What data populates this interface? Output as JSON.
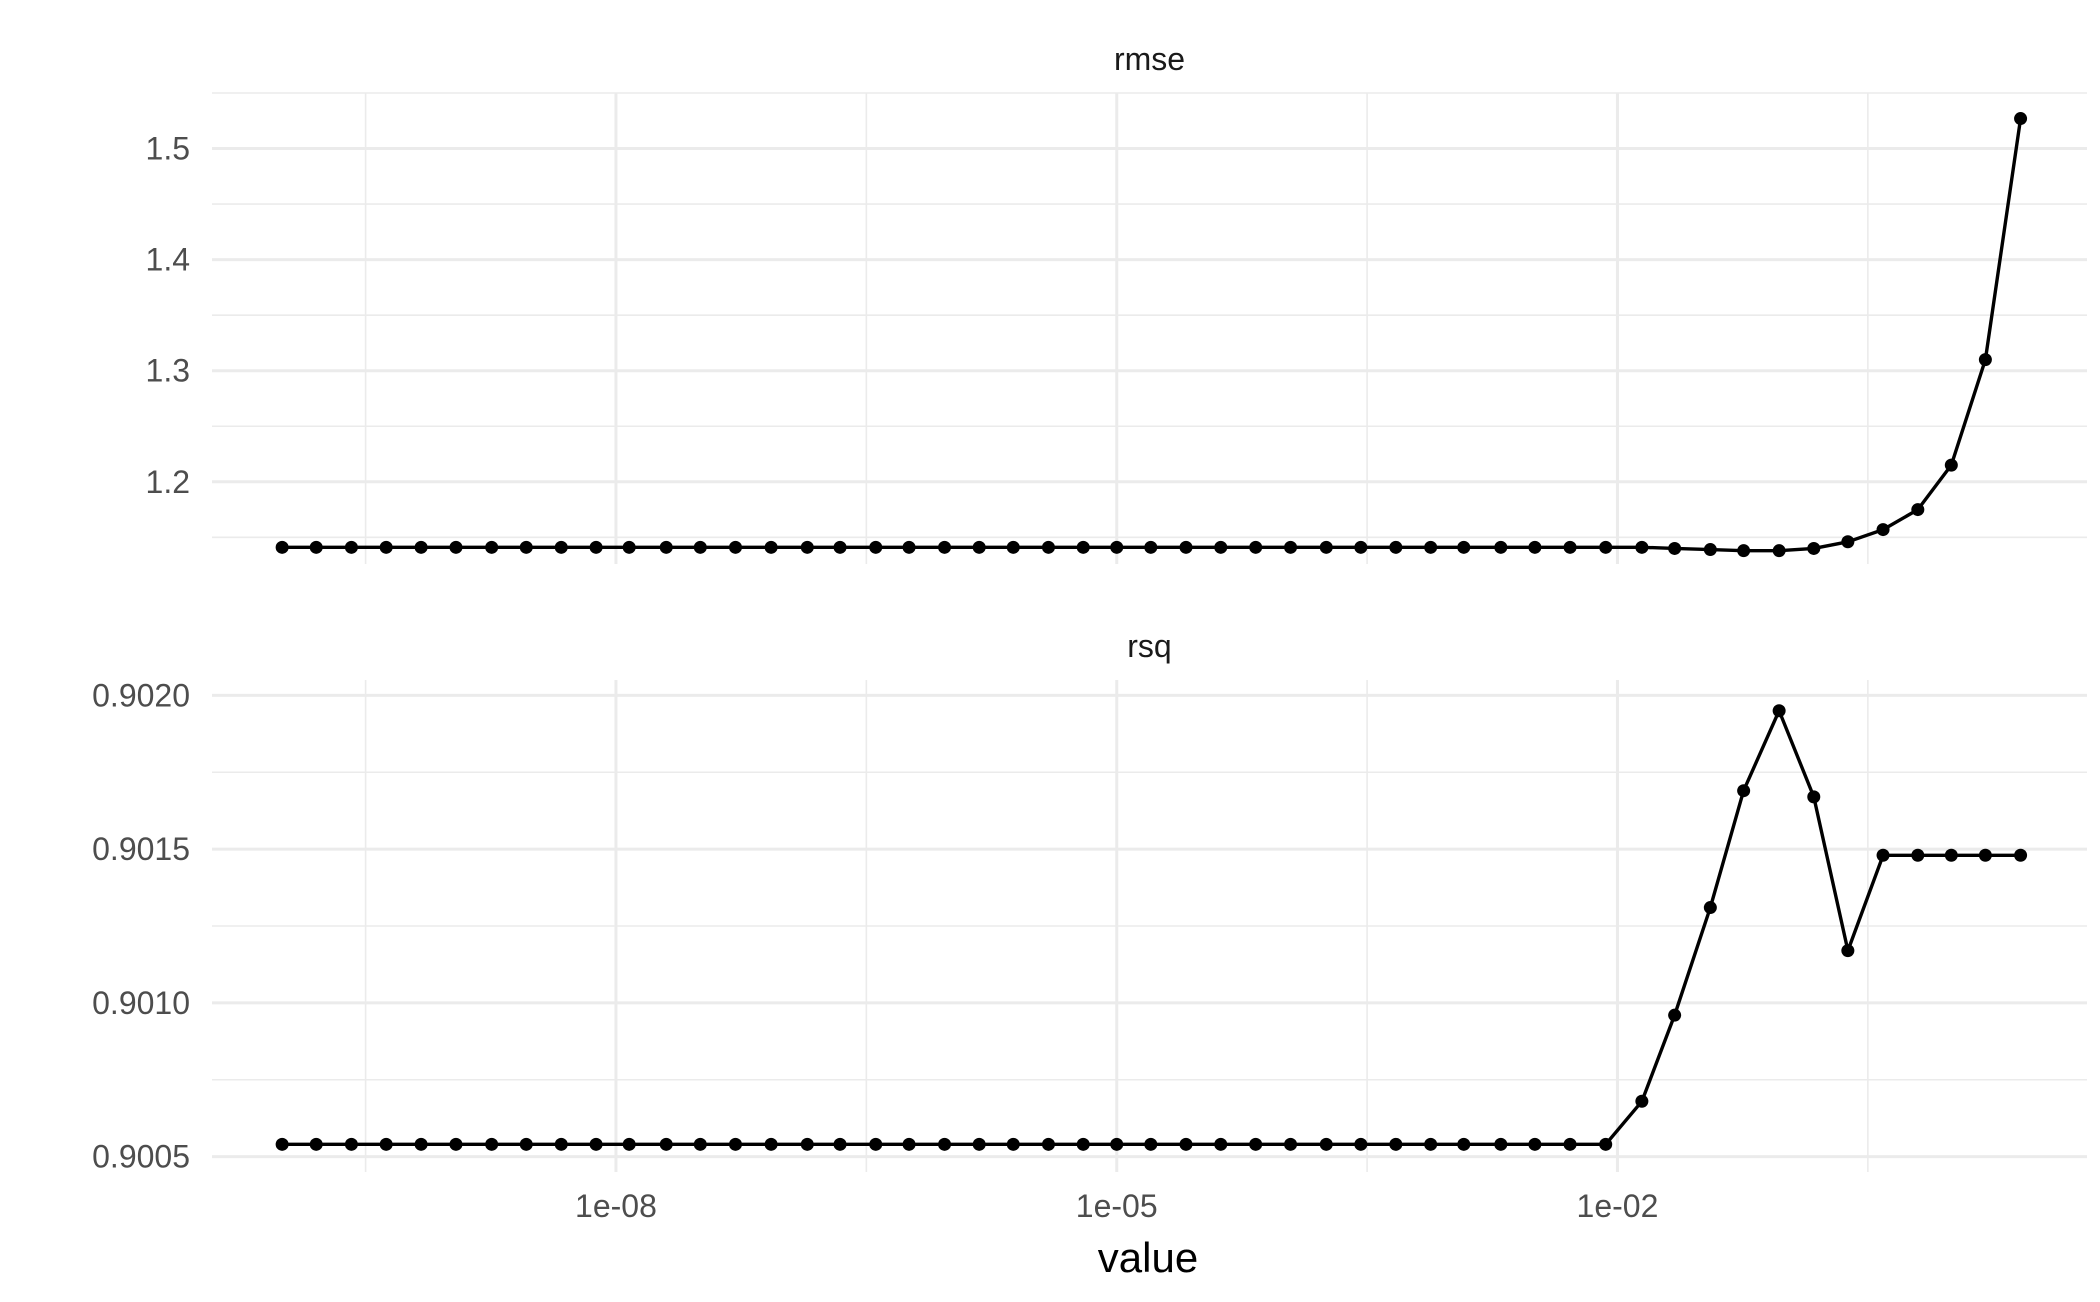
{
  "chart_data": {
    "type": "line",
    "x_scale": "log10",
    "xlabel": "value",
    "x_ticks": [
      1e-08,
      1e-05,
      0.01
    ],
    "x_tick_labels": [
      "1e-08",
      "1e-05",
      "1e-02"
    ],
    "xlim": [
      3.8e-11,
      6.5
    ],
    "x": [
      1e-10,
      1.6e-10,
      2.6e-10,
      4.2e-10,
      6.8e-10,
      1.1e-09,
      1.8e-09,
      2.9e-09,
      4.7e-09,
      7.6e-09,
      1.2e-08,
      2e-08,
      3.2e-08,
      5.2e-08,
      8.5e-08,
      1.4e-07,
      2.2e-07,
      3.6e-07,
      5.7e-07,
      9.3e-07,
      1.5e-06,
      2.4e-06,
      3.9e-06,
      6.3e-06,
      1e-05,
      1.6e-05,
      2.6e-05,
      4.2e-05,
      6.8e-05,
      0.00011,
      0.00018,
      0.00029,
      0.00047,
      0.00076,
      0.0012,
      0.002,
      0.0032,
      0.0052,
      0.0085,
      0.014,
      0.022,
      0.036,
      0.057,
      0.093,
      0.15,
      0.24,
      0.39,
      0.63,
      1.0,
      1.6,
      2.6
    ],
    "panels": [
      {
        "title": "rmse",
        "ylim": [
          1.126,
          1.55
        ],
        "y_ticks": [
          1.2,
          1.3,
          1.4,
          1.5
        ],
        "y_tick_labels": [
          "1.2",
          "1.3",
          "1.4",
          "1.5"
        ],
        "series": [
          {
            "values": [
              1.141,
              1.141,
              1.141,
              1.141,
              1.141,
              1.141,
              1.141,
              1.141,
              1.141,
              1.141,
              1.141,
              1.141,
              1.141,
              1.141,
              1.141,
              1.141,
              1.141,
              1.141,
              1.141,
              1.141,
              1.141,
              1.141,
              1.141,
              1.141,
              1.141,
              1.141,
              1.141,
              1.141,
              1.141,
              1.141,
              1.141,
              1.141,
              1.141,
              1.141,
              1.141,
              1.141,
              1.141,
              1.141,
              1.141,
              1.141,
              1.14,
              1.139,
              1.138,
              1.138,
              1.14,
              1.146,
              1.157,
              1.175,
              1.215,
              1.31,
              1.527
            ]
          }
        ]
      },
      {
        "title": "rsq",
        "ylim": [
          0.90045,
          0.90205
        ],
        "y_ticks": [
          0.9005,
          0.901,
          0.9015,
          0.902
        ],
        "y_tick_labels": [
          "0.9005",
          "0.9010",
          "0.9015",
          "0.9020"
        ],
        "series": [
          {
            "values": [
              0.90054,
              0.90054,
              0.90054,
              0.90054,
              0.90054,
              0.90054,
              0.90054,
              0.90054,
              0.90054,
              0.90054,
              0.90054,
              0.90054,
              0.90054,
              0.90054,
              0.90054,
              0.90054,
              0.90054,
              0.90054,
              0.90054,
              0.90054,
              0.90054,
              0.90054,
              0.90054,
              0.90054,
              0.90054,
              0.90054,
              0.90054,
              0.90054,
              0.90054,
              0.90054,
              0.90054,
              0.90054,
              0.90054,
              0.90054,
              0.90054,
              0.90054,
              0.90054,
              0.90054,
              0.90054,
              0.90068,
              0.90096,
              0.90131,
              0.90169,
              0.90195,
              0.90167,
              0.90117,
              0.90148,
              0.90148,
              0.90148,
              0.90148,
              0.90148
            ]
          }
        ]
      }
    ]
  }
}
